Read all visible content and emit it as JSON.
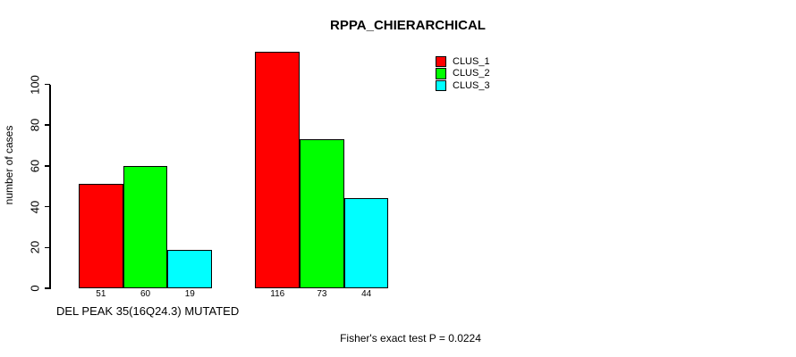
{
  "chart_data": {
    "type": "bar",
    "title": "RPPA_CHIERARCHICAL",
    "ylabel": "number of cases",
    "yticks": [
      0,
      20,
      40,
      60,
      80,
      100
    ],
    "ylim": [
      0,
      116
    ],
    "grid": false,
    "legend_position": "top-right",
    "series": [
      {
        "name": "CLUS_1",
        "color": "#ff0000"
      },
      {
        "name": "CLUS_2",
        "color": "#00ff00"
      },
      {
        "name": "CLUS_3",
        "color": "#00ffff"
      }
    ],
    "groups": [
      {
        "label": "DEL PEAK 35(16Q24.3) MUTATED",
        "values": [
          51,
          60,
          19
        ]
      },
      {
        "label": "",
        "values": [
          116,
          73,
          44
        ]
      }
    ],
    "bar_value_labels_shown": true,
    "annotation": "Fisher's exact test P = 0.0224"
  },
  "colors": {
    "background": "#ffffff",
    "axis": "#000000",
    "text": "#000000"
  }
}
